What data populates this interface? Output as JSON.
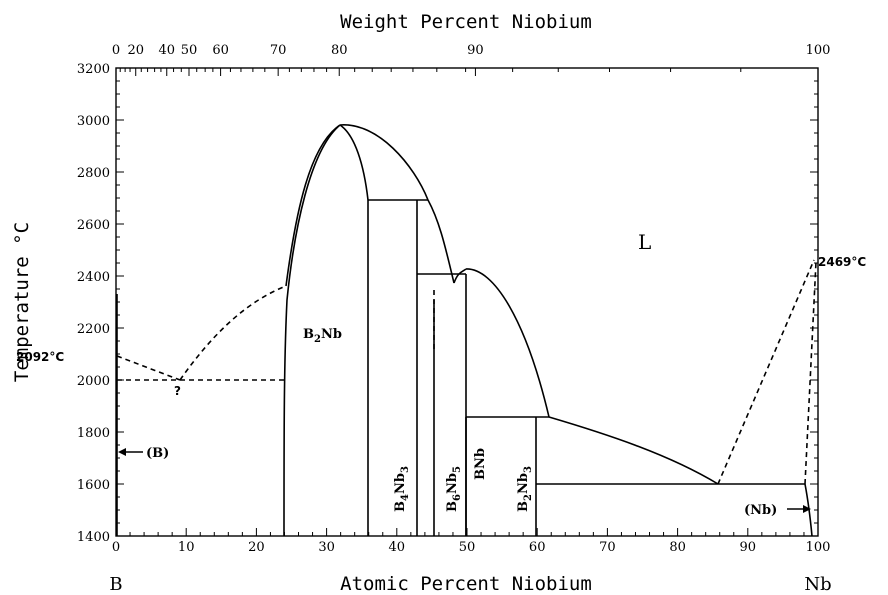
{
  "diagram": {
    "top_axis_title": "Weight Percent Niobium",
    "bottom_axis_title": "Atomic Percent Niobium",
    "y_axis_title": "Temperature °C",
    "left_element": "B",
    "right_element": "Nb",
    "top_ticks": [
      {
        "label": "0",
        "at": 0
      },
      {
        "label": "20",
        "at": 2.81
      },
      {
        "label": "40",
        "at": 7.23
      },
      {
        "label": "50",
        "at": 10.4
      },
      {
        "label": "60",
        "at": 14.9
      },
      {
        "label": "70",
        "at": 23.1
      },
      {
        "label": "80",
        "at": 31.8
      },
      {
        "label": "90",
        "at": 51.2
      },
      {
        "label": "100",
        "at": 100
      }
    ],
    "bottom_ticks": [
      "0",
      "10",
      "20",
      "30",
      "40",
      "50",
      "60",
      "70",
      "80",
      "90",
      "100"
    ],
    "y_ticks": [
      "1400",
      "1600",
      "1800",
      "2000",
      "2200",
      "2400",
      "2600",
      "2800",
      "3000",
      "3200"
    ],
    "x_range": [
      0,
      100
    ],
    "y_range": [
      1400,
      3200
    ],
    "annotations": {
      "left_melting": "2092°C",
      "right_melting": "2469°C",
      "question_mark": "?",
      "b_phase": "(B)",
      "nb_phase": "(Nb)",
      "liquid": "L"
    },
    "phases": {
      "b2nb": {
        "main": "B",
        "sub": "2",
        "tail": "Nb"
      },
      "b4nb3": {
        "main": "B",
        "sub1": "4",
        "mid": "Nb",
        "sub2": "3"
      },
      "b6nb5": {
        "main": "B",
        "sub1": "6",
        "mid": "Nb",
        "sub2": "5"
      },
      "bnb": "BNb",
      "b2nb3": {
        "main": "B",
        "sub1": "2",
        "mid": "Nb",
        "sub2": "3"
      }
    }
  }
}
